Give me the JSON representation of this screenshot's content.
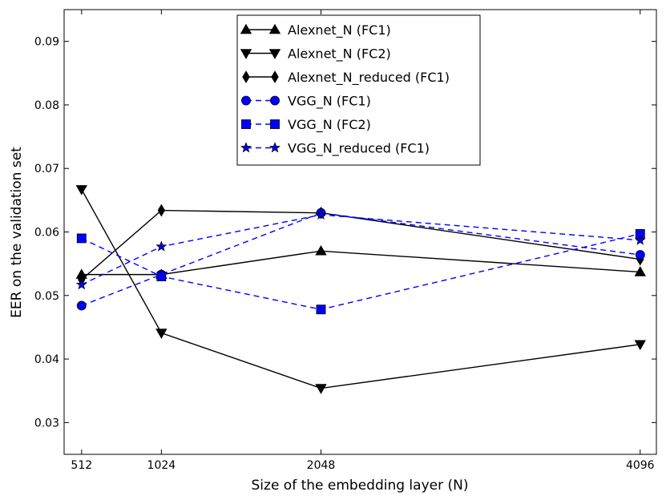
{
  "chart_data": {
    "type": "line",
    "title": "",
    "xlabel": "Size of the embedding layer (N)",
    "ylabel": "EER on the validation set",
    "x": [
      512,
      1024,
      2048,
      4096
    ],
    "x_tick_labels": [
      "512",
      "1024",
      "2048",
      "4096"
    ],
    "xlim": [
      400,
      4200
    ],
    "ylim": [
      0.025,
      0.095
    ],
    "y_ticks": [
      0.03,
      0.04,
      0.05,
      0.06,
      0.07,
      0.08,
      0.09
    ],
    "y_tick_labels": [
      "0.03",
      "0.04",
      "0.05",
      "0.06",
      "0.07",
      "0.08",
      "0.09"
    ],
    "grid": false,
    "legend_position": "top-center",
    "series": [
      {
        "name": "Alexnet_N (FC1)",
        "values": [
          0.0533,
          0.0533,
          0.057,
          0.0537
        ],
        "color": "#000000",
        "marker": "triangle-up",
        "dash": "solid"
      },
      {
        "name": "Alexnet_N (FC2)",
        "values": [
          0.0667,
          0.0441,
          0.0354,
          0.0423
        ],
        "color": "#000000",
        "marker": "triangle-down",
        "dash": "solid"
      },
      {
        "name": "Alexnet_N_reduced (FC1)",
        "values": [
          0.0525,
          0.0634,
          0.063,
          0.0557
        ],
        "color": "#000000",
        "marker": "diamond",
        "dash": "solid"
      },
      {
        "name": "VGG_N (FC1)",
        "values": [
          0.0484,
          0.0533,
          0.063,
          0.0564
        ],
        "color": "#0000ff",
        "marker": "circle",
        "dash": "dashed"
      },
      {
        "name": "VGG_N (FC2)",
        "values": [
          0.059,
          0.053,
          0.0478,
          0.0597
        ],
        "color": "#0000ff",
        "marker": "square",
        "dash": "dashed"
      },
      {
        "name": "VGG_N_reduced (FC1)",
        "values": [
          0.0517,
          0.0577,
          0.0627,
          0.0587
        ],
        "color": "#0000ff",
        "marker": "star",
        "dash": "dashed"
      }
    ]
  }
}
